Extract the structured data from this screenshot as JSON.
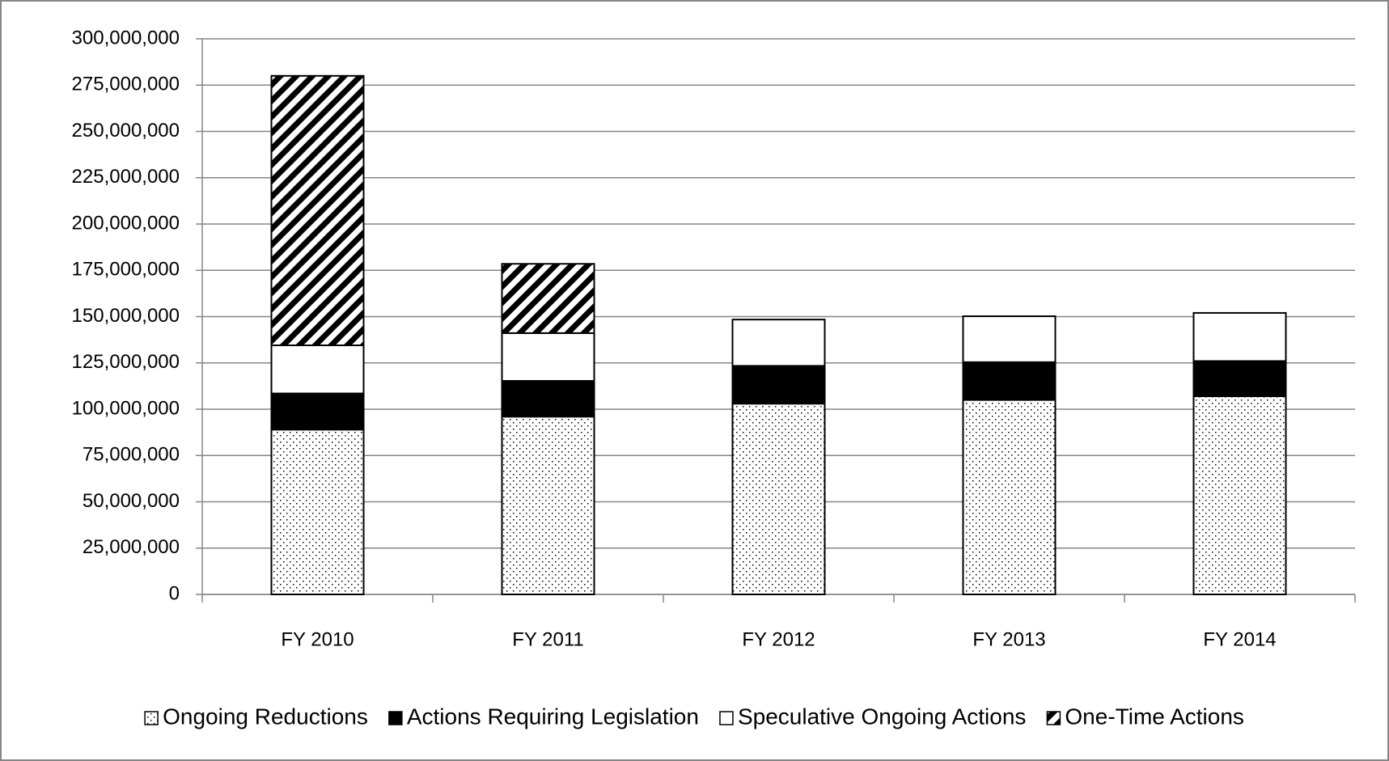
{
  "chart_data": {
    "type": "stacked_bar",
    "categories": [
      "FY 2010",
      "FY 2011",
      "FY 2012",
      "FY 2013",
      "FY 2014"
    ],
    "series": [
      {
        "name": "Ongoing Reductions",
        "color": "#ffffff",
        "pattern": "dots",
        "values": [
          89000000,
          96000000,
          103000000,
          105000000,
          107000000
        ]
      },
      {
        "name": "Actions Requiring Legislation",
        "color": "#000000",
        "pattern": "solid",
        "values": [
          19500000,
          19300000,
          20400000,
          20400000,
          19000000
        ]
      },
      {
        "name": "Speculative Ongoing Actions",
        "color": "#ffffff",
        "pattern": "none",
        "values": [
          26000000,
          25800000,
          25000000,
          24800000,
          26000000
        ]
      },
      {
        "name": "One-Time Actions",
        "color": "#000000",
        "pattern": "stripes",
        "values": [
          145500000,
          37400000,
          0,
          0,
          0
        ]
      }
    ],
    "ylim": [
      0,
      300000000
    ],
    "yticks": [
      0,
      {
        "value": 25000000,
        "label": "25,000,000"
      },
      {
        "value": 50000000,
        "label": "50,000,000"
      },
      {
        "value": 75000000,
        "label": "75,000,000"
      },
      {
        "value": 100000000,
        "label": "100,000,000"
      },
      {
        "value": 125000000,
        "label": "125,000,000"
      },
      {
        "value": 150000000,
        "label": "150,000,000"
      },
      {
        "value": 175000000,
        "label": "175,000,000"
      },
      {
        "value": 200000000,
        "label": "200,000,000"
      },
      {
        "value": 225000000,
        "label": "225,000,000"
      },
      {
        "value": 250000000,
        "label": "250,000,000"
      },
      {
        "value": 275000000,
        "label": "275,000,000"
      },
      {
        "value": 300000000,
        "label": "300,000,000"
      }
    ],
    "grid": true,
    "legend": "bottom"
  }
}
